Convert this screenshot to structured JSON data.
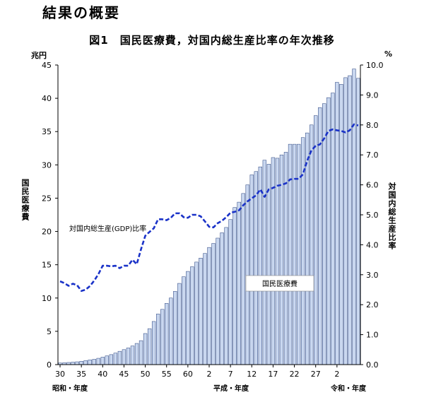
{
  "page": {
    "heading": "結果の概要"
  },
  "chart_data": {
    "type": "bar",
    "title": "図1　国民医療費，対国内総生産比率の年次推移",
    "left_axis": {
      "label": "国民医療費",
      "unit": "兆円",
      "min": 0,
      "max": 45,
      "step": 5,
      "ticks": [
        "0",
        "5",
        "10",
        "15",
        "20",
        "25",
        "30",
        "35",
        "40",
        "45"
      ]
    },
    "right_axis": {
      "label": "対国内総生産比率",
      "unit": "%",
      "min": 0,
      "max": 10,
      "step": 1,
      "ticks": [
        "0.0",
        "1.0",
        "2.0",
        "3.0",
        "4.0",
        "5.0",
        "6.0",
        "7.0",
        "8.0",
        "9.0",
        "10.0"
      ]
    },
    "x_tick_labels": [
      "30",
      "35",
      "40",
      "45",
      "50",
      "55",
      "60",
      "2",
      "7",
      "12",
      "17",
      "22",
      "27",
      "2"
    ],
    "era_labels": [
      "昭和・年度",
      "平成・年度",
      "令和・年度"
    ],
    "series": [
      {
        "name": "国民医療費",
        "kind": "bar",
        "axis": "left",
        "color": "#c9d7ef",
        "values": [
          0.24,
          0.28,
          0.32,
          0.37,
          0.42,
          0.5,
          0.6,
          0.7,
          0.8,
          0.95,
          1.12,
          1.31,
          1.5,
          1.73,
          2.0,
          2.25,
          2.5,
          2.8,
          3.18,
          3.6,
          4.67,
          5.4,
          6.48,
          7.6,
          8.3,
          9.2,
          10.0,
          11.0,
          12.2,
          13.2,
          14.0,
          14.7,
          15.4,
          16.0,
          16.7,
          17.6,
          18.2,
          19.0,
          19.8,
          20.6,
          21.8,
          23.6,
          24.4,
          25.7,
          27.0,
          28.5,
          29.0,
          29.7,
          30.7,
          30.1,
          31.1,
          31.0,
          31.5,
          31.9,
          33.1,
          33.1,
          33.1,
          34.1,
          34.8,
          36.0,
          37.4,
          38.6,
          39.2,
          40.1,
          40.8,
          42.4,
          42.1,
          43.1,
          43.4,
          44.4,
          43.0
        ]
      },
      {
        "name": "対国内総生産(GDP)比率",
        "kind": "line",
        "axis": "right",
        "color": "#1a32c8",
        "values": [
          2.78,
          2.72,
          2.63,
          2.7,
          2.65,
          2.46,
          2.5,
          2.62,
          2.8,
          3.02,
          3.3,
          3.3,
          3.28,
          3.3,
          3.22,
          3.3,
          3.3,
          3.5,
          3.35,
          3.85,
          4.3,
          4.43,
          4.55,
          4.85,
          4.85,
          4.82,
          4.9,
          5.05,
          5.05,
          4.92,
          4.9,
          5.0,
          5.0,
          4.95,
          4.78,
          4.6,
          4.58,
          4.72,
          4.8,
          4.92,
          5.07,
          5.1,
          5.15,
          5.32,
          5.45,
          5.55,
          5.65,
          5.85,
          5.6,
          5.85,
          5.9,
          5.97,
          6.0,
          6.05,
          6.18,
          6.2,
          6.2,
          6.35,
          6.8,
          7.15,
          7.3,
          7.35,
          7.55,
          7.8,
          7.85,
          7.82,
          7.8,
          7.75,
          7.82,
          8.02,
          7.98
        ]
      }
    ],
    "annotations": [
      "対国内総生産(GDP)比率",
      "国民医療費"
    ]
  }
}
